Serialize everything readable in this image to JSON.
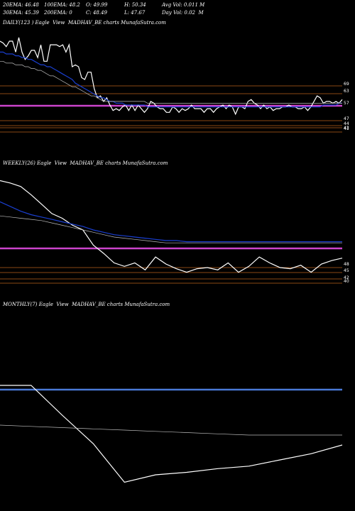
{
  "header": {
    "row1": [
      "20EMA: 46.48",
      "100EMA: 48.2",
      "O: 49.99",
      "H: 50.34",
      "Avg Vol: 0.011 M"
    ],
    "row2": [
      "30EMA: 45.39",
      "200EMA: 0",
      "C: 48.49",
      "L: 47.67",
      "Day Vol: 0.02  M"
    ]
  },
  "colors": {
    "background": "#000000",
    "price": "#ffffff",
    "ema_blue": "#1a3fd0",
    "magenta": "#cc44cc",
    "orange": "#b8621a",
    "gray": "#bbbbbb",
    "monthly_blue": "#4a7ad8"
  },
  "chart_data": [
    {
      "type": "line",
      "title": "DAILY(123 ) Eagle  View  MADHAV_BE charts MunafaSutra.com",
      "y_labels": [
        "69",
        "63",
        "57",
        "47",
        "44",
        "43",
        "41"
      ],
      "series": [
        {
          "color": "white",
          "values": [
            103,
            102,
            100,
            103,
            103,
            97,
            105,
            97,
            93,
            95,
            98,
            98,
            94,
            101,
            92,
            92,
            101,
            101,
            101,
            100,
            101,
            97,
            101,
            89,
            90,
            89,
            83,
            82,
            86,
            86,
            77,
            72,
            73,
            70,
            72,
            68,
            65,
            66,
            65,
            67,
            68,
            65,
            68,
            65,
            68,
            66,
            64,
            66,
            70,
            69,
            67,
            66,
            66,
            64,
            64,
            67,
            66,
            64,
            66,
            65,
            66,
            68,
            66,
            66,
            66,
            64,
            66,
            66,
            64,
            66,
            67,
            68,
            66,
            68,
            67,
            63,
            67,
            67,
            66,
            70,
            71,
            69,
            68,
            66,
            68,
            66,
            67,
            65,
            66,
            66,
            67,
            67,
            68,
            67,
            67,
            66,
            66,
            67,
            65,
            67,
            70,
            73,
            72,
            69,
            70,
            70,
            69,
            70,
            69,
            71
          ]
        },
        {
          "color": "blue",
          "values": [
            97,
            97,
            96,
            96,
            96,
            95,
            95,
            94,
            94,
            93,
            93,
            92,
            91,
            90,
            90,
            89,
            89,
            88,
            87,
            86,
            85,
            84,
            83,
            82,
            80,
            79,
            78,
            77,
            76,
            75,
            74,
            73,
            72,
            72,
            71,
            70,
            70,
            69,
            69,
            69,
            68,
            68,
            68,
            68,
            68,
            68,
            68,
            67,
            67,
            67,
            67,
            67,
            67,
            67,
            67,
            67,
            67,
            67,
            67,
            67,
            67,
            67,
            67,
            67,
            67,
            67,
            67,
            67,
            67,
            67,
            67,
            67,
            67,
            67,
            67,
            67,
            67,
            67,
            67,
            67,
            67,
            67,
            67,
            67,
            67,
            67,
            67,
            67,
            67,
            67,
            67,
            67,
            67,
            67,
            67,
            67,
            67,
            67,
            67,
            67,
            67,
            67,
            67,
            68,
            68,
            68,
            68,
            68,
            69,
            69
          ]
        },
        {
          "color": "gray",
          "values": [
            92,
            92,
            91,
            91,
            91,
            90,
            90,
            90,
            89,
            89,
            88,
            88,
            87,
            87,
            86,
            85,
            84,
            84,
            83,
            82,
            81,
            80,
            79,
            78,
            78,
            77,
            76,
            75,
            74,
            73,
            73,
            72,
            71,
            70,
            70,
            70,
            70,
            70,
            70,
            70,
            70,
            70,
            70,
            70,
            70,
            70,
            70,
            69,
            69,
            69,
            69,
            69,
            69,
            69,
            69,
            69,
            69,
            69,
            69,
            69,
            69,
            69,
            69,
            69,
            69,
            69,
            69,
            69,
            69,
            69,
            69,
            69,
            69,
            69,
            69,
            69,
            69,
            69,
            69,
            69,
            69,
            69,
            69,
            69,
            69,
            69,
            69,
            69,
            69,
            69,
            69,
            69,
            69,
            69,
            69,
            69,
            69,
            69,
            69,
            69,
            69,
            69,
            69,
            69,
            69,
            69,
            69,
            69,
            69,
            69
          ]
        }
      ],
      "h_lines": [
        {
          "value": 69,
          "color": "orange"
        },
        {
          "value": 63,
          "color": "orange"
        },
        {
          "value": 57,
          "color": "magenta"
        },
        {
          "value": 47,
          "color": "orange"
        },
        {
          "value": 44,
          "color": "orange"
        },
        {
          "value": 43,
          "color": "orange"
        },
        {
          "value": 41,
          "color": "orange"
        }
      ]
    },
    {
      "type": "line",
      "title": "WEEKLY(26) Eagle  View  MADHAV_BE charts MunafaSutra.com",
      "y_labels": [
        "48",
        "45",
        "42",
        "40"
      ],
      "series": [
        {
          "color": "white",
          "values": [
            100,
            98,
            95,
            88,
            80,
            72,
            68,
            62,
            58,
            45,
            38,
            30,
            27,
            30,
            24,
            35,
            29,
            25,
            22,
            25,
            26,
            24,
            30,
            22,
            27,
            35,
            30,
            26,
            25,
            28,
            22,
            29,
            32,
            34
          ]
        },
        {
          "color": "blue",
          "values": [
            82,
            78,
            74,
            71,
            69,
            67,
            65,
            63,
            61,
            58,
            56,
            54,
            53,
            52,
            51,
            50,
            49,
            49,
            48,
            48,
            48,
            48,
            48,
            48,
            48,
            48,
            48,
            48,
            48,
            48,
            48,
            48,
            48,
            48
          ]
        },
        {
          "color": "gray",
          "values": [
            70,
            69,
            68,
            67,
            66,
            64,
            62,
            60,
            58,
            56,
            54,
            52,
            51,
            50,
            49,
            48,
            47,
            47,
            47,
            47,
            47,
            47,
            47,
            47,
            47,
            47,
            47,
            47,
            47,
            47,
            47,
            47,
            47,
            47
          ]
        }
      ],
      "h_lines": [
        {
          "value": 60,
          "color": "magenta"
        },
        {
          "value": 48,
          "color": "orange"
        },
        {
          "value": 45,
          "color": "orange"
        },
        {
          "value": 42,
          "color": "orange"
        },
        {
          "value": 40,
          "color": "orange"
        }
      ]
    },
    {
      "type": "line",
      "title": "MONTHLY(7) Eagle  View  MADHAV_BE charts MunafaSutra.com",
      "y_labels": [],
      "series": [
        {
          "color": "white",
          "values": [
            100,
            100,
            76,
            53,
            22,
            28,
            30,
            33,
            35,
            40,
            45,
            52
          ]
        },
        {
          "color": "gray",
          "values": [
            68,
            67,
            66,
            65,
            64,
            63,
            62,
            61,
            60,
            60,
            60,
            60
          ]
        }
      ],
      "h_lines": [
        {
          "value": 80,
          "color": "monthly_blue"
        }
      ]
    }
  ]
}
